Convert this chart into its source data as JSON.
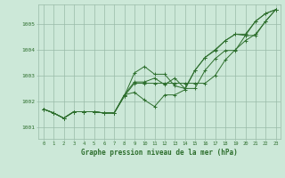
{
  "title": "",
  "xlabel": "Graphe pression niveau de la mer (hPa)",
  "background_color": "#cce8d8",
  "plot_bg_color": "#cce8d8",
  "grid_color": "#99bba8",
  "line_color": "#2d6e2d",
  "x_ticks": [
    0,
    1,
    2,
    3,
    4,
    5,
    6,
    7,
    8,
    9,
    10,
    11,
    12,
    13,
    14,
    15,
    16,
    17,
    18,
    19,
    20,
    21,
    22,
    23
  ],
  "y_ticks": [
    1001,
    1002,
    1003,
    1004,
    1005
  ],
  "ylim": [
    1000.55,
    1005.75
  ],
  "xlim": [
    -0.5,
    23.5
  ],
  "series1": [
    1001.7,
    1001.55,
    1001.35,
    1001.6,
    1001.6,
    1001.6,
    1001.55,
    1001.55,
    1002.2,
    1003.1,
    1003.35,
    1003.05,
    1003.05,
    1002.6,
    1002.5,
    1003.2,
    1003.7,
    1004.0,
    1004.35,
    1004.6,
    1004.6,
    1005.1,
    1005.4,
    1005.55
  ],
  "series2": [
    1001.7,
    1001.55,
    1001.35,
    1001.6,
    1001.6,
    1001.6,
    1001.55,
    1001.55,
    1002.2,
    1002.7,
    1002.7,
    1002.7,
    1002.7,
    1002.7,
    1002.7,
    1002.7,
    1002.7,
    1003.0,
    1003.6,
    1004.0,
    1004.35,
    1004.6,
    1005.1,
    1005.55
  ],
  "series3": [
    1001.7,
    1001.55,
    1001.35,
    1001.6,
    1001.6,
    1001.6,
    1001.55,
    1001.55,
    1002.25,
    1002.75,
    1002.75,
    1002.9,
    1002.65,
    1002.9,
    1002.5,
    1002.5,
    1003.2,
    1003.65,
    1003.97,
    1003.97,
    1004.55,
    1004.55,
    1005.1,
    1005.55
  ],
  "series4": [
    1001.7,
    1001.55,
    1001.35,
    1001.6,
    1001.6,
    1001.6,
    1001.55,
    1001.55,
    1002.25,
    1002.35,
    1002.05,
    1001.8,
    1002.25,
    1002.25,
    1002.45,
    1003.2,
    1003.7,
    1003.97,
    1004.35,
    1004.6,
    1004.55,
    1005.1,
    1005.4,
    1005.55
  ]
}
